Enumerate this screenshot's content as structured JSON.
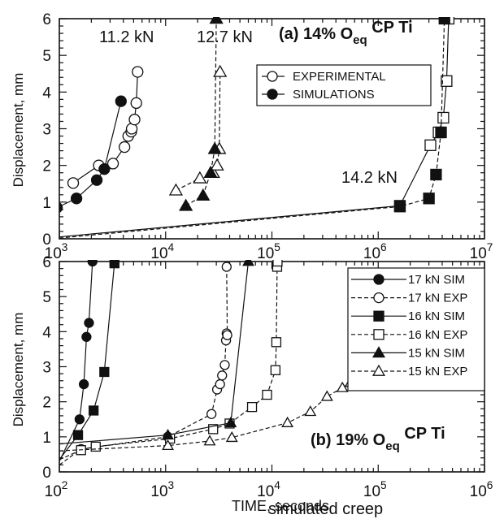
{
  "chart_data": [
    {
      "type": "line",
      "title": "(a) 14% O",
      "title_sub": "eq",
      "title_suffix": " CP Ti",
      "xlabel": "",
      "ylabel": "Displacement, mm",
      "xscale": "log",
      "xlim": [
        1000,
        10000000
      ],
      "ylim": [
        0,
        6
      ],
      "x_ticks": [
        1000,
        10000,
        100000,
        1000000,
        10000000
      ],
      "x_tick_labels": [
        {
          "base": "10",
          "exp": "3"
        },
        {
          "base": "10",
          "exp": "4"
        },
        {
          "base": "10",
          "exp": "5"
        },
        {
          "base": "10",
          "exp": "6"
        },
        {
          "base": "10",
          "exp": "7"
        }
      ],
      "y_ticks": [
        0,
        1,
        2,
        3,
        4,
        5,
        6
      ],
      "y_tick_labels": [
        "0",
        "1",
        "2",
        "3",
        "4",
        "5",
        "6"
      ],
      "legend": {
        "placement": "top-right",
        "entries": [
          {
            "label": "EXPERIMENTAL",
            "marker": "circle",
            "filled": false
          },
          {
            "label": "SIMULATIONS",
            "marker": "circle",
            "filled": true
          }
        ]
      },
      "annotations": [
        "11.2 kN",
        "12.7 kN",
        "14.2 kN"
      ],
      "series": [
        {
          "label": "11.2 kN",
          "marker": "circle",
          "filled": false,
          "dash": "",
          "x": [
            1350,
            2350,
            3200,
            4100,
            4450,
            4750,
            4800,
            5100,
            5300,
            5450
          ],
          "y": [
            1.52,
            2.0,
            2.05,
            2.5,
            2.8,
            2.92,
            3.0,
            3.25,
            3.7,
            4.55
          ]
        },
        {
          "label": "11.2 kN",
          "marker": "circle",
          "filled": true,
          "dash": "",
          "x": [
            950,
            1450,
            2250,
            2650,
            3800
          ],
          "y": [
            0.85,
            1.1,
            1.6,
            1.9,
            3.75
          ]
        },
        {
          "label": "12.7 kN",
          "marker": "triangle",
          "filled": false,
          "dash": "5,3",
          "x": [
            12500,
            21000,
            28000,
            30500,
            32000,
            32500
          ],
          "y": [
            1.32,
            1.65,
            1.8,
            2.0,
            2.45,
            4.55
          ]
        },
        {
          "label": "12.7 kN",
          "marker": "triangle",
          "filled": true,
          "dash": "5,3",
          "x": [
            15500,
            22500,
            26500,
            29000,
            30000
          ],
          "y": [
            0.9,
            1.18,
            1.8,
            2.45,
            6.0
          ]
        },
        {
          "label": "14.2 kN",
          "marker": "square",
          "filled": false,
          "dash": "",
          "x": [
            1000,
            1600000,
            3100000,
            3700000,
            4100000,
            4400000,
            4600000
          ],
          "y": [
            0.05,
            0.9,
            2.55,
            2.9,
            3.3,
            4.3,
            6.0
          ]
        },
        {
          "label": "14.2 kN",
          "marker": "square",
          "filled": true,
          "dash": "5,3",
          "x": [
            1000,
            1600000,
            3000000,
            3500000,
            3900000,
            4200000
          ],
          "y": [
            0.02,
            0.88,
            1.1,
            1.75,
            2.9,
            6.0
          ]
        }
      ]
    },
    {
      "type": "line",
      "title": "(b) 19% O",
      "title_sub": "eq",
      "title_suffix": " CP Ti",
      "xlabel": "TIME, seconds",
      "ylabel": "Displacement, mm",
      "xscale": "log",
      "xlim": [
        100,
        1000000
      ],
      "ylim": [
        0,
        6
      ],
      "x_ticks": [
        100,
        1000,
        10000,
        100000,
        1000000
      ],
      "x_tick_labels": [
        {
          "base": "10",
          "exp": "2"
        },
        {
          "base": "10",
          "exp": "3"
        },
        {
          "base": "10",
          "exp": "4"
        },
        {
          "base": "10",
          "exp": "5"
        },
        {
          "base": "10",
          "exp": "6"
        }
      ],
      "y_ticks": [
        0,
        1,
        2,
        3,
        4,
        5,
        6
      ],
      "y_tick_labels": [
        "0",
        "1",
        "2",
        "3",
        "4",
        "5",
        "6"
      ],
      "legend": {
        "placement": "top-right",
        "entries": [
          {
            "label": "17 kN SIM",
            "marker": "circle",
            "filled": true,
            "dash": ""
          },
          {
            "label": "17 kN EXP",
            "marker": "circle",
            "filled": false,
            "dash": "5,3"
          },
          {
            "label": "16 kN SIM",
            "marker": "square",
            "filled": true,
            "dash": ""
          },
          {
            "label": "16 kN EXP",
            "marker": "square",
            "filled": false,
            "dash": "5,3"
          },
          {
            "label": "15 kN SIM",
            "marker": "triangle",
            "filled": true,
            "dash": ""
          },
          {
            "label": "15 kN EXP",
            "marker": "triangle",
            "filled": false,
            "dash": "5,3"
          }
        ]
      },
      "series": [
        {
          "label": "17 kN SIM",
          "marker": "circle",
          "filled": true,
          "dash": "",
          "x": [
            100,
            155,
            170,
            180,
            190,
            205
          ],
          "y": [
            0.3,
            1.5,
            2.5,
            3.85,
            4.25,
            6.0
          ]
        },
        {
          "label": "17 kN EXP",
          "marker": "circle",
          "filled": false,
          "dash": "5,3",
          "x": [
            100,
            160,
            1050,
            2700,
            3050,
            3250,
            3400,
            3600,
            3700,
            3750,
            3800,
            3750
          ],
          "y": [
            0.2,
            0.65,
            1.0,
            1.65,
            2.35,
            2.5,
            2.75,
            3.05,
            3.75,
            3.95,
            3.9,
            5.85
          ]
        },
        {
          "label": "16 kN SIM",
          "marker": "square",
          "filled": true,
          "dash": "",
          "x": [
            100,
            150,
            210,
            265,
            330
          ],
          "y": [
            0.35,
            1.05,
            1.75,
            2.85,
            5.95
          ]
        },
        {
          "label": "16 kN EXP",
          "marker": "square",
          "filled": false,
          "dash": "5,3",
          "x": [
            100,
            160,
            220,
            1100,
            2800,
            4000,
            6500,
            9000,
            10800,
            11000,
            11200,
            11300
          ],
          "y": [
            0.35,
            0.62,
            0.72,
            0.95,
            1.22,
            1.38,
            1.85,
            2.2,
            2.9,
            3.7,
            5.85,
            6.0
          ]
        },
        {
          "label": "15 kN SIM",
          "marker": "triangle",
          "filled": true,
          "dash": "",
          "x": [
            100,
            1050,
            4100,
            6000
          ],
          "y": [
            0.8,
            1.05,
            1.4,
            6.0
          ]
        },
        {
          "label": "15 kN EXP",
          "marker": "triangle",
          "filled": false,
          "dash": "5,3",
          "x": [
            100,
            1050,
            2600,
            4200,
            14000,
            23000,
            33000,
            46000,
            55000,
            65000,
            75000,
            90000,
            120000
          ],
          "y": [
            0.6,
            0.75,
            0.88,
            0.98,
            1.4,
            1.72,
            2.15,
            2.4,
            2.55,
            2.7,
            2.85,
            3.05,
            3.2
          ]
        }
      ]
    }
  ],
  "caption_fragment": "simulated creep"
}
